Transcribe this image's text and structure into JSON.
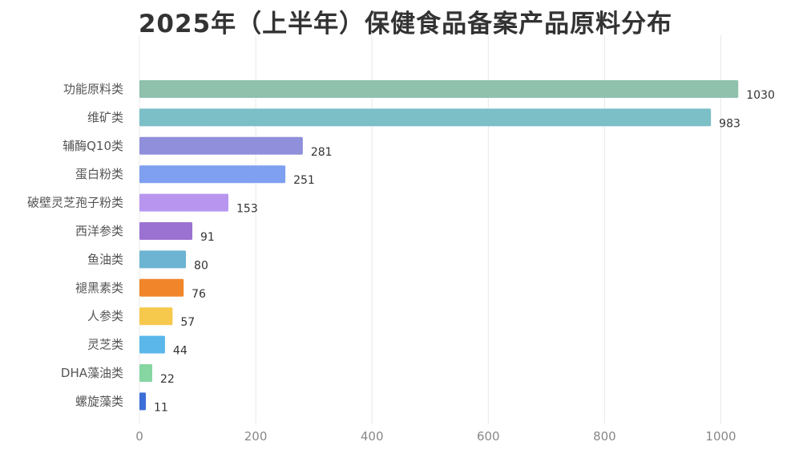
{
  "chart_data": {
    "type": "bar",
    "orientation": "horizontal",
    "title": "2025年（上半年）保健食品备案产品原料分布",
    "categories": [
      "功能原料类",
      "维矿类",
      "辅酶Q10类",
      "蛋白粉类",
      "破壁灵芝孢子粉类",
      "西洋参类",
      "鱼油类",
      "褪黑素类",
      "人参类",
      "灵芝类",
      "DHA藻油类",
      "螺旋藻类"
    ],
    "values": [
      1030,
      983,
      281,
      251,
      153,
      91,
      80,
      76,
      57,
      44,
      22,
      11
    ],
    "value_labels": [
      "1030",
      "983",
      "281",
      "251",
      "153",
      "91",
      "80",
      "76",
      "57",
      "44",
      "22",
      "11"
    ],
    "colors": [
      "#8fc1ad",
      "#7cbfc6",
      "#8f8fdb",
      "#7f9ff0",
      "#b896ef",
      "#9b72d1",
      "#6cb4d2",
      "#f08529",
      "#f6c84c",
      "#5bb7ea",
      "#86d6a2",
      "#3d6fd8"
    ],
    "xticks": [
      0,
      200,
      400,
      600,
      800,
      1000
    ],
    "xtick_labels": [
      "0",
      "200",
      "400",
      "600",
      "800",
      "1000"
    ],
    "xlim": [
      0,
      1040
    ],
    "grid": "vertical",
    "xlabel": "",
    "ylabel": ""
  }
}
